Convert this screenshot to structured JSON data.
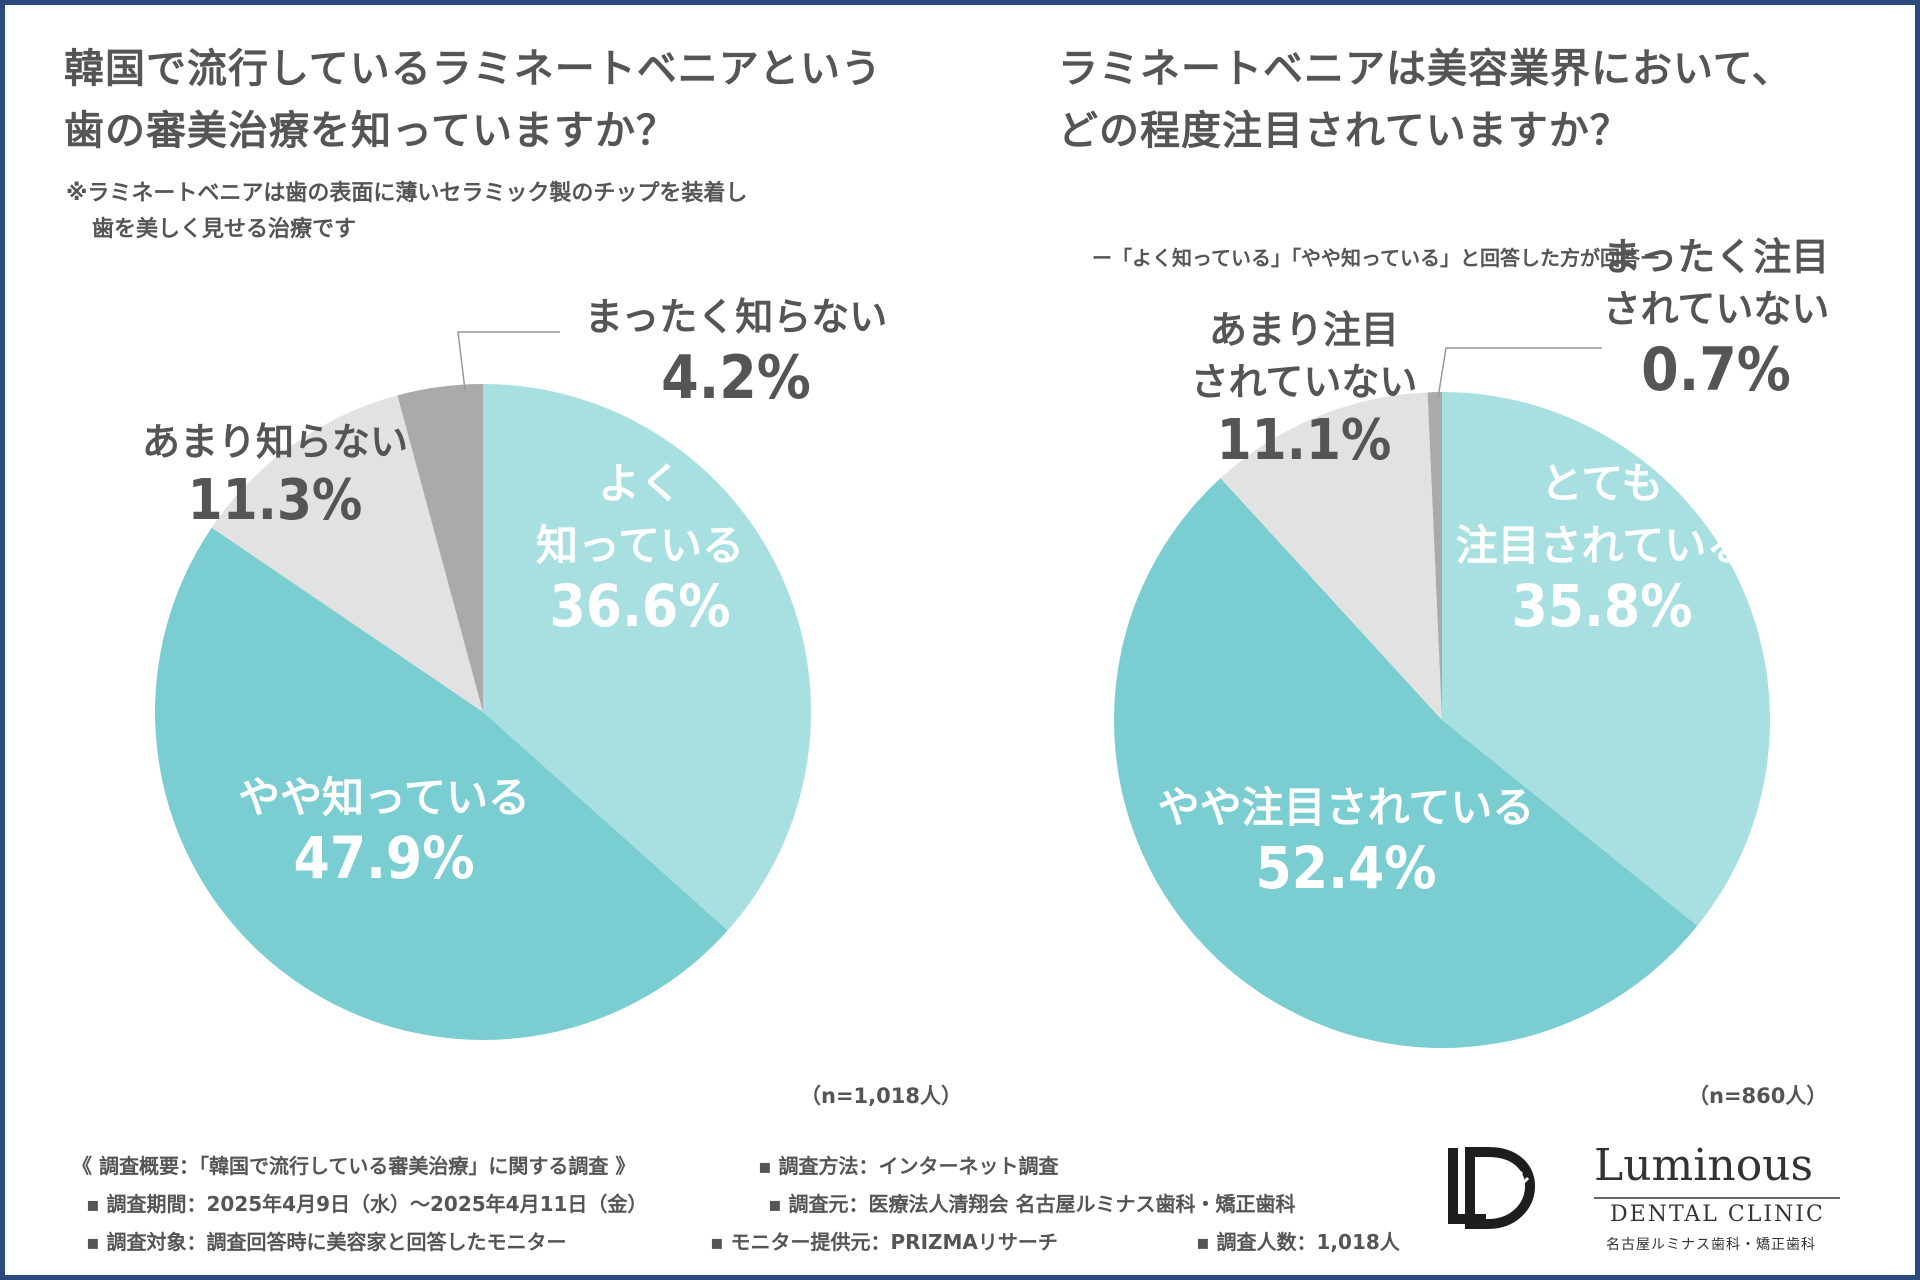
{
  "charts": [
    {
      "title_lines": [
        "韓国で流行しているラミネートベニアという",
        "歯の審美治療を知っていますか？"
      ],
      "note_lines": [
        "※ラミネートベニアは歯の表面に薄いセラミック製のチップを装着し",
        "歯を美しく見せる治療です"
      ],
      "sample": "（n=1,018人）"
    },
    {
      "title_lines": [
        "ラミネートベニアは美容業界において、",
        "どの程度注目されていますか？"
      ],
      "subtitle": "ー「よく知っている」「やや知っている」と回答した方が回答ー",
      "sample": "（n=860人）"
    }
  ],
  "chart_data": [
    {
      "type": "pie",
      "title": "韓国で流行しているラミネートベニアという歯の審美治療を知っていますか？",
      "slices": [
        {
          "label": "よく知っている",
          "label_lines": [
            "よく",
            "知っている"
          ],
          "value": 36.6,
          "value_text": "36.6%",
          "color": "#a8dfe0"
        },
        {
          "label": "やや知っている",
          "label_lines": [
            "やや知っている"
          ],
          "value": 47.9,
          "value_text": "47.9%",
          "color": "#7acdd1"
        },
        {
          "label": "あまり知らない",
          "label_lines": [
            "あまり知らない"
          ],
          "value": 11.3,
          "value_text": "11.3%",
          "color": "#e2e2e2"
        },
        {
          "label": "まったく知らない",
          "label_lines": [
            "まったく知らない"
          ],
          "value": 4.2,
          "value_text": "4.2%",
          "color": "#aaaaaa"
        }
      ]
    },
    {
      "type": "pie",
      "title": "ラミネートベニアは美容業界において、どの程度注目されていますか？",
      "slices": [
        {
          "label": "とても注目されている",
          "label_lines": [
            "とても",
            "注目されている"
          ],
          "value": 35.8,
          "value_text": "35.8%",
          "color": "#a8dfe0"
        },
        {
          "label": "やや注目されている",
          "label_lines": [
            "やや注目されている"
          ],
          "value": 52.4,
          "value_text": "52.4%",
          "color": "#7acdd1"
        },
        {
          "label": "あまり注目されていない",
          "label_lines": [
            "あまり注目",
            "されていない"
          ],
          "value": 11.1,
          "value_text": "11.1%",
          "color": "#e2e2e2"
        },
        {
          "label": "まったく注目されていない",
          "label_lines": [
            "まったく注目",
            "されていない"
          ],
          "value": 0.7,
          "value_text": "0.7%",
          "color": "#aaaaaa"
        }
      ]
    }
  ],
  "footer": {
    "line1a": "《 調査概要：「韓国で流行している審美治療」に関する調査 》",
    "line1b": "▪ 調査方法：インターネット調査",
    "line2a": "▪ 調査期間：2025年4月9日（水）〜2025年4月11日（金）",
    "line2b": "▪ 調査元：医療法人清翔会 名古屋ルミナス歯科・矯正歯科",
    "line3a": "▪ 調査対象：調査回答時に美容家と回答したモニター",
    "line3b": "▪ モニター提供元：PRIZMAリサーチ",
    "line3c": "▪ 調査人数：1,018人"
  },
  "logo": {
    "mark": "LD",
    "name": "Luminous",
    "sub": "DENTAL CLINIC",
    "jp": "名古屋ルミナス歯科・矯正歯科"
  },
  "colors": {
    "frame": "#2c4a80",
    "text": "#555555",
    "label_on_color": "#ffffff",
    "label_dark": "#555555"
  }
}
